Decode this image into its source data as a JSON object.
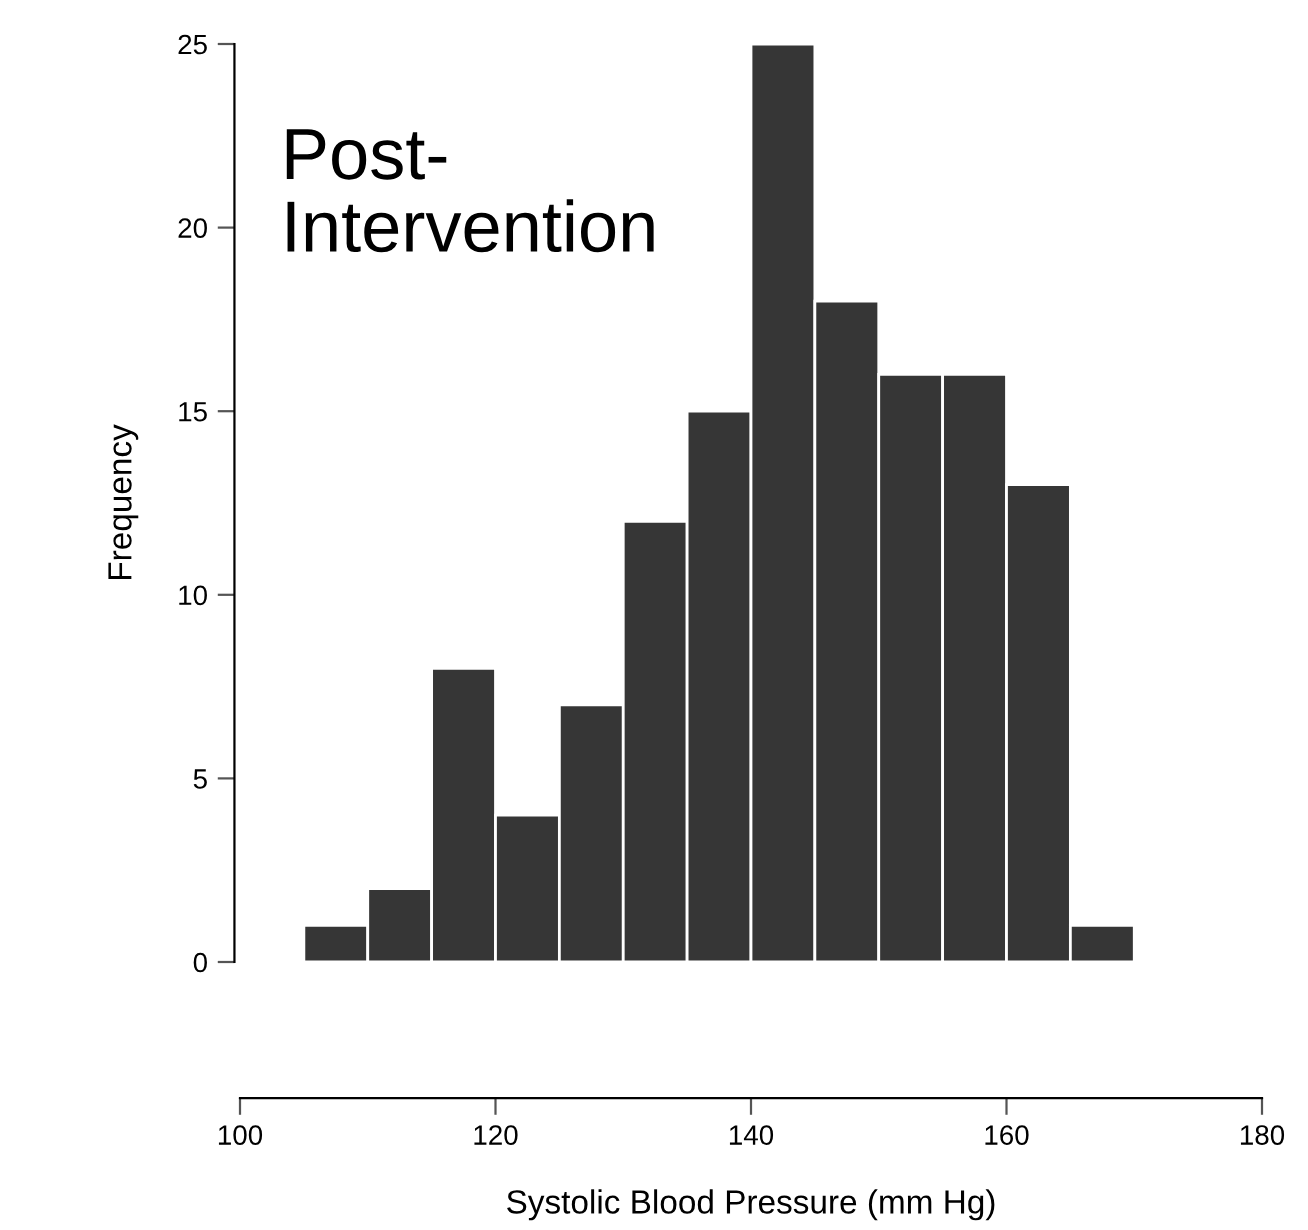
{
  "chart_data": {
    "type": "histogram",
    "xlabel": "Systolic Blood Pressure (mm Hg)",
    "ylabel": "Frequency",
    "annotations": [
      "Post-\nIntervention"
    ],
    "bins": [
      105,
      110,
      115,
      120,
      125,
      130,
      135,
      140,
      145,
      150,
      155,
      160,
      165,
      170
    ],
    "values": [
      1,
      2,
      8,
      4,
      7,
      12,
      15,
      25,
      18,
      16,
      16,
      13,
      1
    ],
    "color": "#363636",
    "xlim": [
      100,
      180
    ],
    "xticks": [
      100,
      120,
      140,
      160,
      180
    ],
    "ylim": [
      0,
      25
    ],
    "yticks": [
      0,
      5,
      10,
      15,
      20,
      25
    ],
    "grid": false
  }
}
